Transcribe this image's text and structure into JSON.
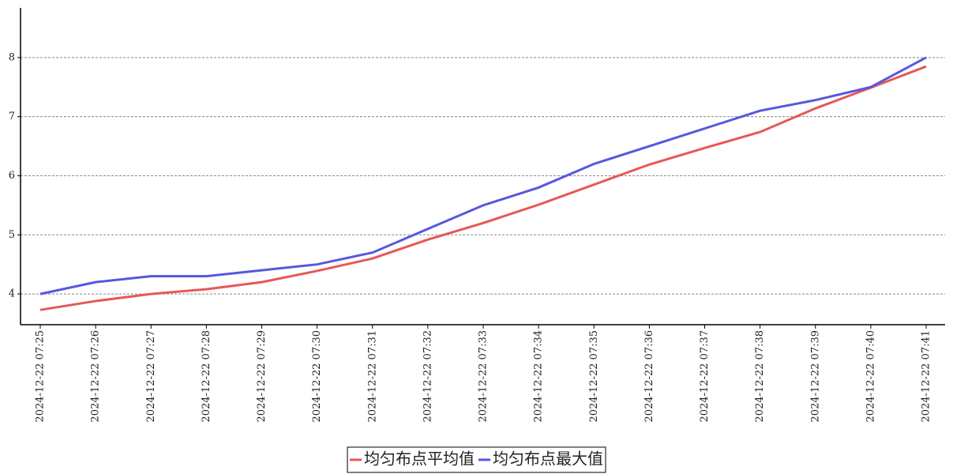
{
  "chart_data": {
    "type": "line",
    "categories": [
      "2024-12-22  07:25",
      "2024-12-22  07:26",
      "2024-12-22  07:27",
      "2024-12-22  07:28",
      "2024-12-22  07:29",
      "2024-12-22  07:30",
      "2024-12-22  07:31",
      "2024-12-22  07:32",
      "2024-12-22  07:33",
      "2024-12-22  07:34",
      "2024-12-22  07:35",
      "2024-12-22  07:36",
      "2024-12-22  07:37",
      "2024-12-22  07:38",
      "2024-12-22  07:39",
      "2024-12-22  07:40",
      "2024-12-22  07:41"
    ],
    "series": [
      {
        "name": "均匀布点平均值",
        "color": "#e85757",
        "values": [
          3.73,
          3.88,
          4.0,
          4.08,
          4.2,
          4.39,
          4.6,
          4.92,
          5.2,
          5.51,
          5.85,
          6.19,
          6.47,
          6.74,
          7.14,
          7.49,
          7.85
        ]
      },
      {
        "name": "均匀布点最大值",
        "color": "#5757e0",
        "values": [
          4.0,
          4.2,
          4.3,
          4.3,
          4.4,
          4.5,
          4.7,
          5.1,
          5.5,
          5.8,
          6.2,
          6.5,
          6.8,
          7.1,
          7.28,
          7.5,
          8.0
        ]
      }
    ],
    "ylim": [
      3.48,
      8.84
    ],
    "yticks": [
      4,
      5,
      6,
      7,
      8
    ],
    "grid": true,
    "legend": "bottom"
  }
}
